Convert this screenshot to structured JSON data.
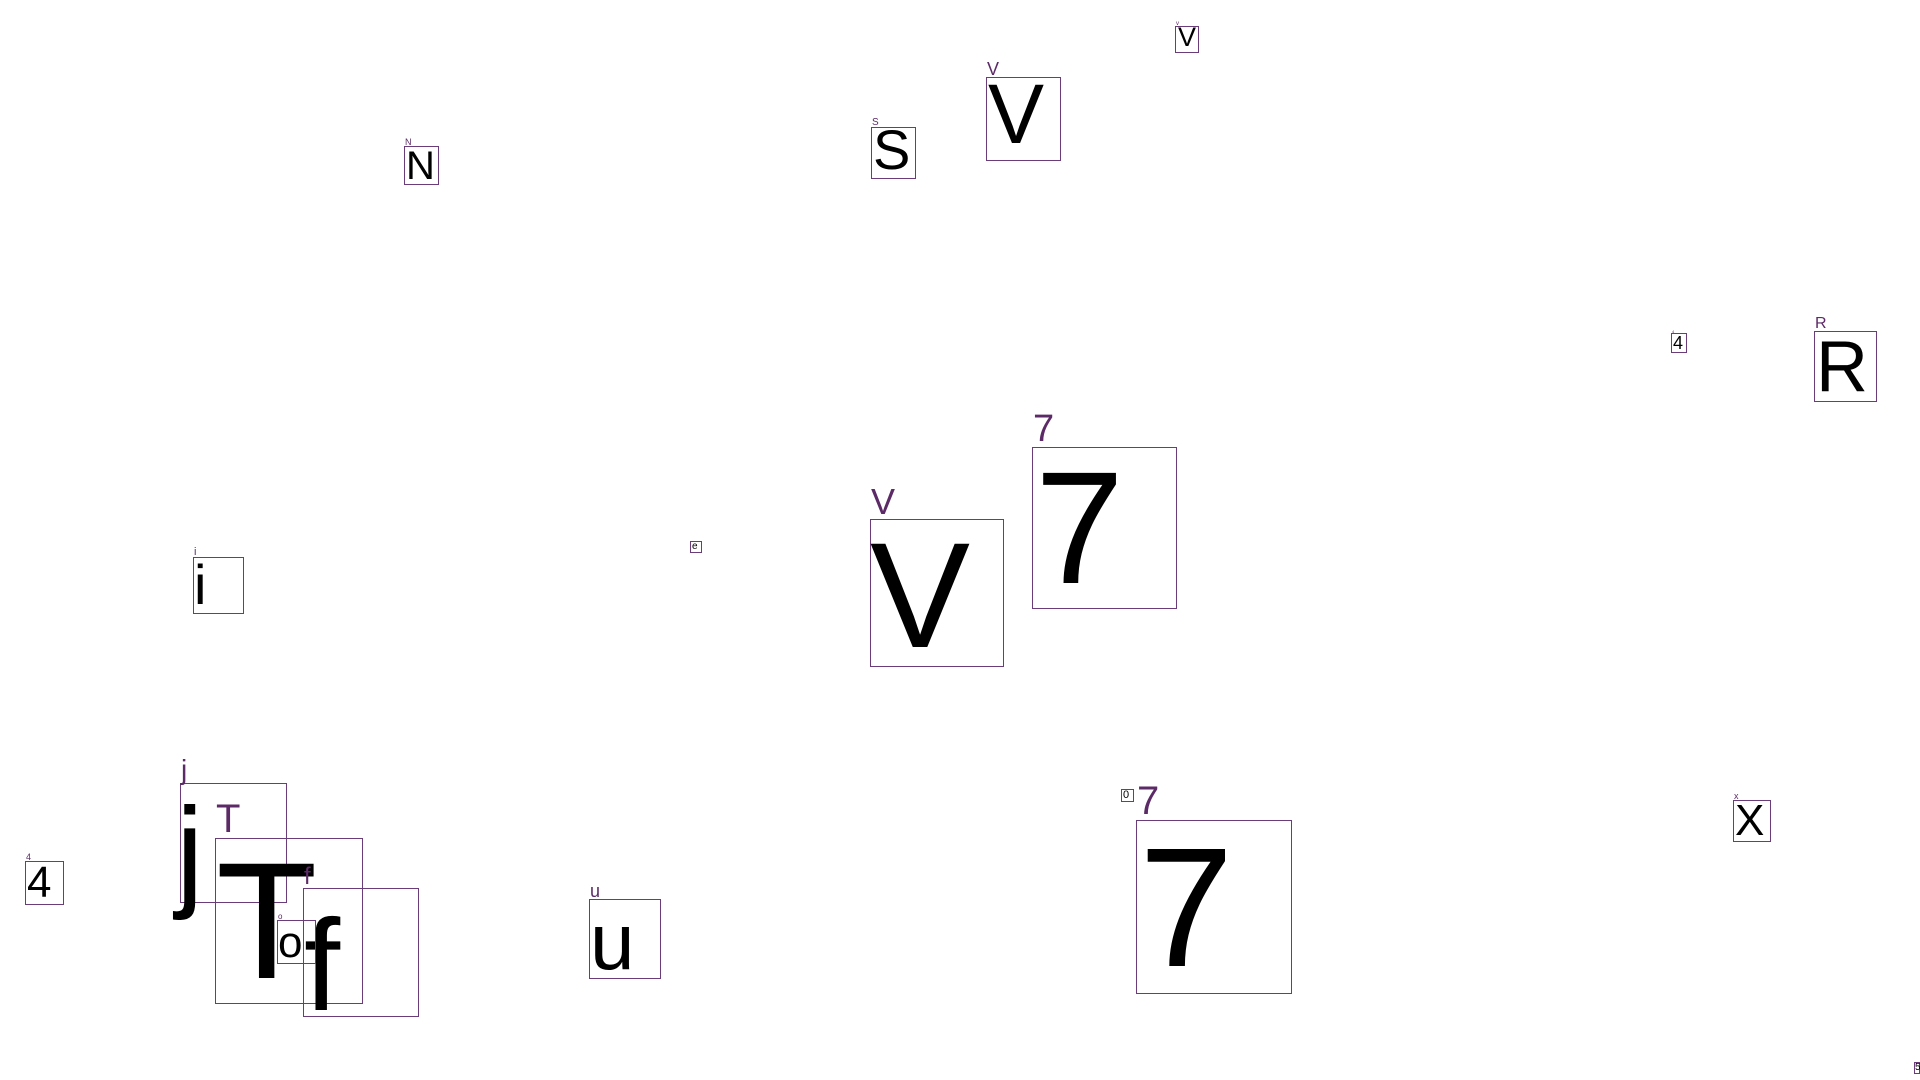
{
  "colors": {
    "box_border": "#6a3d7a",
    "tag_text": "#5c2a66",
    "glyph_text": "#000000",
    "background": "#ffffff"
  },
  "glyphs": [
    {
      "char": "V",
      "tag": "v"
    },
    {
      "char": "V",
      "tag": "V"
    },
    {
      "char": "S",
      "tag": "S"
    },
    {
      "char": "N",
      "tag": "N"
    },
    {
      "char": "4",
      "tag": "4"
    },
    {
      "char": "R",
      "tag": "R"
    },
    {
      "char": "7",
      "tag": "7"
    },
    {
      "char": "V",
      "tag": "V"
    },
    {
      "char": "e",
      "tag": ""
    },
    {
      "char": "i",
      "tag": "i"
    },
    {
      "char": "j",
      "tag": "j"
    },
    {
      "char": "T",
      "tag": "T"
    },
    {
      "char": "4",
      "tag": "4"
    },
    {
      "char": "f",
      "tag": "f"
    },
    {
      "char": "o",
      "tag": "o"
    },
    {
      "char": "u",
      "tag": "u"
    },
    {
      "char": "0",
      "tag": ""
    },
    {
      "char": "7",
      "tag": "7"
    },
    {
      "char": "X",
      "tag": "x"
    },
    {
      "char": "5",
      "tag": ""
    }
  ]
}
